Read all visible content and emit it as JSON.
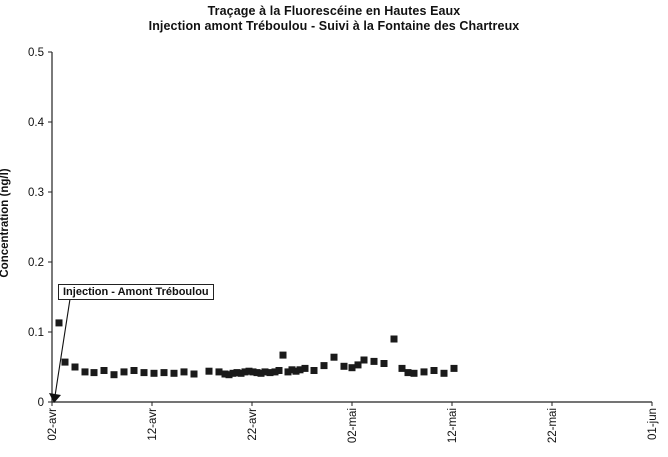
{
  "chart_data": {
    "type": "scatter",
    "title": "Traçage à la Fluorescéine en Hautes Eaux",
    "subtitle": "Injection amont Tréboulou - Suivi à la Fontaine des Chartreux",
    "ylabel": "Concentration (ng/l)",
    "xlabel": "",
    "xlim": [
      0,
      60
    ],
    "ylim": [
      0,
      0.5
    ],
    "x_ticks": [
      0,
      10,
      20,
      30,
      40,
      50,
      60
    ],
    "x_tick_labels": [
      "02-avr",
      "12-avr",
      "22-avr",
      "02-mai",
      "12-mai",
      "22-mai",
      "01-jun"
    ],
    "y_ticks": [
      0,
      0.1,
      0.2,
      0.3,
      0.4,
      0.5
    ],
    "y_tick_labels": [
      "0",
      "0.1",
      "0.2",
      "0.3",
      "0.4",
      "0.5"
    ],
    "grid": false,
    "marker": "square",
    "marker_color": "#1a1a1a",
    "annotation": {
      "text": "Injection - Amont Tréboulou",
      "x": 0,
      "y": 0
    },
    "series": [
      {
        "x": [
          0.7,
          1.3,
          2.3,
          3.3,
          4.2,
          5.2,
          6.2,
          7.2,
          8.2,
          9.2,
          10.2,
          11.2,
          12.2,
          13.2,
          14.2,
          15.7,
          16.7,
          17.3,
          17.7,
          18.1,
          18.5,
          18.9,
          19.3,
          19.7,
          20.1,
          20.5,
          20.9,
          21.3,
          21.8,
          22.3,
          22.7,
          23.1,
          23.6,
          24.0,
          24.4,
          24.8,
          25.3,
          26.2,
          27.2,
          28.2,
          29.2,
          30.0,
          30.6,
          31.2,
          32.2,
          33.2,
          34.2,
          35.0,
          35.6,
          36.2,
          37.2,
          38.2,
          39.2,
          40.2
        ],
        "y": [
          0.113,
          0.057,
          0.05,
          0.043,
          0.042,
          0.045,
          0.039,
          0.043,
          0.045,
          0.042,
          0.041,
          0.042,
          0.041,
          0.043,
          0.04,
          0.044,
          0.043,
          0.04,
          0.039,
          0.041,
          0.042,
          0.041,
          0.043,
          0.044,
          0.043,
          0.042,
          0.041,
          0.043,
          0.042,
          0.043,
          0.045,
          0.067,
          0.043,
          0.046,
          0.044,
          0.046,
          0.048,
          0.045,
          0.052,
          0.064,
          0.051,
          0.049,
          0.053,
          0.06,
          0.058,
          0.055,
          0.09,
          0.048,
          0.042,
          0.041,
          0.043,
          0.045,
          0.041,
          0.048
        ]
      }
    ]
  }
}
